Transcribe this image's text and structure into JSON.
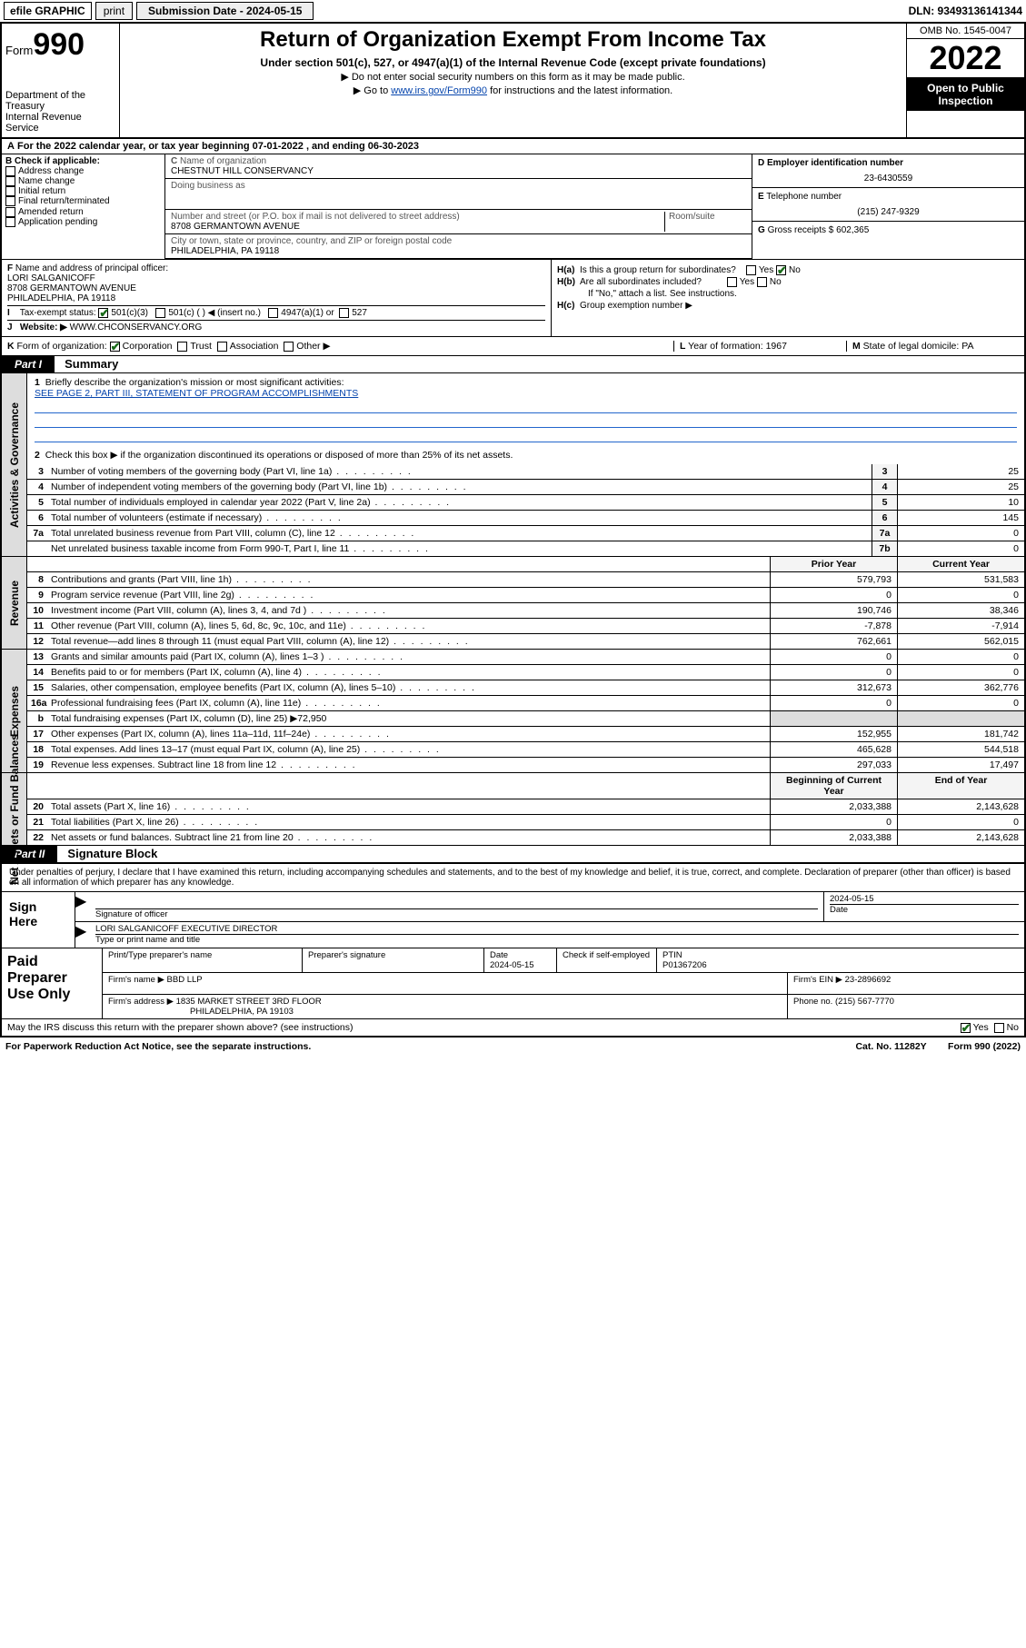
{
  "topbar": {
    "efile": "efile GRAPHIC",
    "print": "print",
    "subdate_label": "Submission Date - 2024-05-15",
    "dln": "DLN: 93493136141344"
  },
  "header": {
    "form_word": "Form",
    "form_num": "990",
    "dept": "Department of the Treasury",
    "irs": "Internal Revenue Service",
    "title": "Return of Organization Exempt From Income Tax",
    "sub1": "Under section 501(c), 527, or 4947(a)(1) of the Internal Revenue Code (except private foundations)",
    "sub2": "▶ Do not enter social security numbers on this form as it may be made public.",
    "sub3_pre": "▶ Go to ",
    "sub3_link": "www.irs.gov/Form990",
    "sub3_post": " for instructions and the latest information.",
    "omb": "OMB No. 1545-0047",
    "year": "2022",
    "open": "Open to Public Inspection"
  },
  "A": {
    "text": "For the 2022 calendar year, or tax year beginning 07-01-2022   , and ending 06-30-2023"
  },
  "B": {
    "title": "Check if applicable:",
    "items": [
      "Address change",
      "Name change",
      "Initial return",
      "Final return/terminated",
      "Amended return",
      "Application pending"
    ]
  },
  "C": {
    "name_label": "Name of organization",
    "name": "CHESTNUT HILL CONSERVANCY",
    "dba_label": "Doing business as",
    "dba": "",
    "street_label": "Number and street (or P.O. box if mail is not delivered to street address)",
    "room": "Room/suite",
    "street": "8708 GERMANTOWN AVENUE",
    "city_label": "City or town, state or province, country, and ZIP or foreign postal code",
    "city": "PHILADELPHIA, PA  19118"
  },
  "D": {
    "label": "Employer identification number",
    "val": "23-6430559"
  },
  "E": {
    "label": "Telephone number",
    "val": "(215) 247-9329"
  },
  "G": {
    "label": "Gross receipts $",
    "val": "602,365"
  },
  "F": {
    "label": "Name and address of principal officer:",
    "name": "LORI SALGANICOFF",
    "addr1": "8708 GERMANTOWN AVENUE",
    "addr2": "PHILADELPHIA, PA  19118"
  },
  "H": {
    "a": "Is this a group return for subordinates?",
    "a_no": "No",
    "a_yes": "Yes",
    "b": "Are all subordinates included?",
    "b_yes": "Yes",
    "b_no": "No",
    "b_note": "If \"No,\" attach a list. See instructions.",
    "c": "Group exemption number ▶"
  },
  "I": {
    "label": "Tax-exempt status:",
    "c1": "501(c)(3)",
    "c2": "501(c) (   ) ◀ (insert no.)",
    "c3": "4947(a)(1) or",
    "c4": "527"
  },
  "J": {
    "label": "Website: ▶",
    "val": "WWW.CHCONSERVANCY.ORG"
  },
  "K": {
    "label": "Form of organization:",
    "opts": [
      "Corporation",
      "Trust",
      "Association",
      "Other ▶"
    ]
  },
  "L": {
    "label": "Year of formation:",
    "val": "1967"
  },
  "M": {
    "label": "State of legal domicile:",
    "val": "PA"
  },
  "part1": {
    "hdr": "Part I",
    "title": "Summary"
  },
  "summary": {
    "q1": "Briefly describe the organization's mission or most significant activities:",
    "q1link": "SEE PAGE 2, PART III, STATEMENT OF PROGRAM ACCOMPLISHMENTS",
    "q2": "Check this box ▶        if the organization discontinued its operations or disposed of more than 25% of its net assets.",
    "rows_gov": [
      {
        "n": "3",
        "d": "Number of voting members of the governing body (Part VI, line 1a)",
        "rn": "3",
        "v": "25"
      },
      {
        "n": "4",
        "d": "Number of independent voting members of the governing body (Part VI, line 1b)",
        "rn": "4",
        "v": "25"
      },
      {
        "n": "5",
        "d": "Total number of individuals employed in calendar year 2022 (Part V, line 2a)",
        "rn": "5",
        "v": "10"
      },
      {
        "n": "6",
        "d": "Total number of volunteers (estimate if necessary)",
        "rn": "6",
        "v": "145"
      },
      {
        "n": "7a",
        "d": "Total unrelated business revenue from Part VIII, column (C), line 12",
        "rn": "7a",
        "v": "0"
      },
      {
        "n": "",
        "d": "Net unrelated business taxable income from Form 990-T, Part I, line 11",
        "rn": "7b",
        "v": "0"
      }
    ],
    "col_prior": "Prior Year",
    "col_curr": "Current Year",
    "rows_rev": [
      {
        "n": "8",
        "d": "Contributions and grants (Part VIII, line 1h)",
        "p": "579,793",
        "c": "531,583"
      },
      {
        "n": "9",
        "d": "Program service revenue (Part VIII, line 2g)",
        "p": "0",
        "c": "0"
      },
      {
        "n": "10",
        "d": "Investment income (Part VIII, column (A), lines 3, 4, and 7d )",
        "p": "190,746",
        "c": "38,346"
      },
      {
        "n": "11",
        "d": "Other revenue (Part VIII, column (A), lines 5, 6d, 8c, 9c, 10c, and 11e)",
        "p": "-7,878",
        "c": "-7,914"
      },
      {
        "n": "12",
        "d": "Total revenue—add lines 8 through 11 (must equal Part VIII, column (A), line 12)",
        "p": "762,661",
        "c": "562,015"
      }
    ],
    "rows_exp": [
      {
        "n": "13",
        "d": "Grants and similar amounts paid (Part IX, column (A), lines 1–3 )",
        "p": "0",
        "c": "0"
      },
      {
        "n": "14",
        "d": "Benefits paid to or for members (Part IX, column (A), line 4)",
        "p": "0",
        "c": "0"
      },
      {
        "n": "15",
        "d": "Salaries, other compensation, employee benefits (Part IX, column (A), lines 5–10)",
        "p": "312,673",
        "c": "362,776"
      },
      {
        "n": "16a",
        "d": "Professional fundraising fees (Part IX, column (A), line 11e)",
        "p": "0",
        "c": "0"
      },
      {
        "n": "b",
        "d": "Total fundraising expenses (Part IX, column (D), line 25) ▶72,950",
        "p": "",
        "c": "",
        "nob": true
      },
      {
        "n": "17",
        "d": "Other expenses (Part IX, column (A), lines 11a–11d, 11f–24e)",
        "p": "152,955",
        "c": "181,742"
      },
      {
        "n": "18",
        "d": "Total expenses. Add lines 13–17 (must equal Part IX, column (A), line 25)",
        "p": "465,628",
        "c": "544,518"
      },
      {
        "n": "19",
        "d": "Revenue less expenses. Subtract line 18 from line 12",
        "p": "297,033",
        "c": "17,497"
      }
    ],
    "col_begin": "Beginning of Current Year",
    "col_end": "End of Year",
    "rows_net": [
      {
        "n": "20",
        "d": "Total assets (Part X, line 16)",
        "p": "2,033,388",
        "c": "2,143,628"
      },
      {
        "n": "21",
        "d": "Total liabilities (Part X, line 26)",
        "p": "0",
        "c": "0"
      },
      {
        "n": "22",
        "d": "Net assets or fund balances. Subtract line 21 from line 20",
        "p": "2,033,388",
        "c": "2,143,628"
      }
    ],
    "vlabels": {
      "gov": "Activities & Governance",
      "rev": "Revenue",
      "exp": "Expenses",
      "net": "Net Assets or Fund Balances"
    }
  },
  "part2": {
    "hdr": "Part II",
    "title": "Signature Block",
    "decl": "Under penalties of perjury, I declare that I have examined this return, including accompanying schedules and statements, and to the best of my knowledge and belief, it is true, correct, and complete. Declaration of preparer (other than officer) is based on all information of which preparer has any knowledge."
  },
  "sign": {
    "here": "Sign Here",
    "sig_label": "Signature of officer",
    "date": "2024-05-15",
    "date_label": "Date",
    "name": "LORI SALGANICOFF  EXECUTIVE DIRECTOR",
    "name_label": "Type or print name and title"
  },
  "paid": {
    "title": "Paid Preparer Use Only",
    "h": [
      "Print/Type preparer's name",
      "Preparer's signature",
      "Date",
      "",
      "PTIN"
    ],
    "date": "2024-05-15",
    "check_label": "Check        if self-employed",
    "ptin": "P01367206",
    "firm_label": "Firm's name   ▶",
    "firm": "BBD LLP",
    "ein_label": "Firm's EIN ▶",
    "ein": "23-2896692",
    "addr_label": "Firm's address ▶",
    "addr1": "1835 MARKET STREET 3RD FLOOR",
    "addr2": "PHILADELPHIA, PA  19103",
    "phone_label": "Phone no.",
    "phone": "(215) 567-7770",
    "discuss": "May the IRS discuss this return with the preparer shown above? (see instructions)",
    "yes": "Yes",
    "no": "No"
  },
  "footer": {
    "pra": "For Paperwork Reduction Act Notice, see the separate instructions.",
    "cat": "Cat. No. 11282Y",
    "form": "Form 990 (2022)"
  },
  "colors": {
    "link": "#0645ad",
    "checkgreen": "#1a6b1a",
    "ruleline": "#2645cc"
  }
}
